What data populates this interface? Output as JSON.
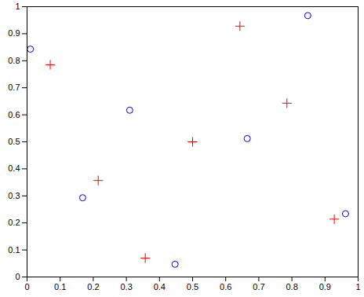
{
  "chart_data": {
    "type": "scatter",
    "series": [
      {
        "color": "#ff0000",
        "marker": "plus",
        "x": [
          0.07,
          0.215,
          0.357,
          0.5,
          0.643,
          0.785,
          0.928
        ],
        "values": [
          0.785,
          0.357,
          0.07,
          0.5,
          0.928,
          0.643,
          0.214
        ]
      },
      {
        "color": "#0000ff",
        "marker": "circle",
        "x": [
          0.01,
          0.168,
          0.31,
          0.447,
          0.665,
          0.848,
          0.962
        ],
        "values": [
          0.843,
          0.293,
          0.617,
          0.047,
          0.512,
          0.967,
          0.234
        ]
      }
    ],
    "xlim": [
      0,
      1
    ],
    "ylim": [
      0,
      1
    ],
    "xticks": [
      0,
      0.1,
      0.2,
      0.3,
      0.4,
      0.5,
      0.6,
      0.7,
      0.8,
      0.9,
      1
    ],
    "yticks": [
      0,
      0.1,
      0.2,
      0.3,
      0.4,
      0.5,
      0.6,
      0.7,
      0.8,
      0.9,
      1
    ],
    "grid": false
  }
}
